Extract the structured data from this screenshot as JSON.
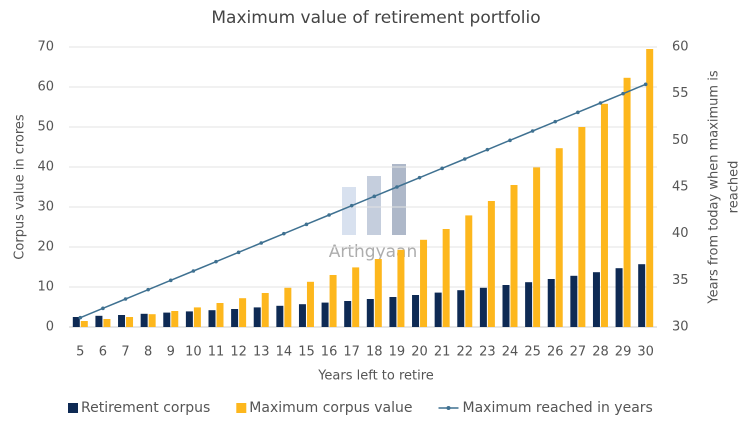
{
  "chart_data": {
    "type": "bar_line",
    "title": "Maximum value of retirement portfolio",
    "xlabel": "Years left to retire",
    "ylabel": "Corpus value in crores",
    "y2label": [
      "Years from today when maximum is",
      "reached"
    ],
    "watermark": "Arthgyaan",
    "categories": [
      "5",
      "6",
      "7",
      "8",
      "9",
      "10",
      "11",
      "12",
      "13",
      "14",
      "15",
      "16",
      "17",
      "18",
      "19",
      "20",
      "21",
      "22",
      "23",
      "24",
      "25",
      "26",
      "27",
      "28",
      "29",
      "30"
    ],
    "series": [
      {
        "name": "Retirement corpus",
        "type": "bar",
        "color": "#0e2a54",
        "values": [
          2.5,
          2.8,
          3.0,
          3.3,
          3.6,
          3.9,
          4.2,
          4.5,
          4.9,
          5.3,
          5.7,
          6.1,
          6.5,
          7.0,
          7.5,
          8.0,
          8.6,
          9.2,
          9.8,
          10.5,
          11.2,
          12.0,
          12.8,
          13.7,
          14.7,
          15.7
        ]
      },
      {
        "name": "Maximum corpus value",
        "type": "bar",
        "color": "#fdb71d",
        "values": [
          1.5,
          2.0,
          2.5,
          3.2,
          4.0,
          4.9,
          6.0,
          7.2,
          8.5,
          9.8,
          11.3,
          13.0,
          14.9,
          17.0,
          19.3,
          21.8,
          24.5,
          27.9,
          31.5,
          35.5,
          39.9,
          44.7,
          50.0,
          55.8,
          62.3,
          69.5
        ]
      },
      {
        "name": "Maximum reached in years",
        "type": "line",
        "axis": "y2",
        "color": "#3f7191",
        "values": [
          31,
          32,
          33,
          34,
          35,
          36,
          37,
          38,
          39,
          40,
          41,
          42,
          43,
          44,
          45,
          46,
          47,
          48,
          49,
          50,
          51,
          52,
          53,
          54,
          55,
          56
        ]
      }
    ],
    "ylim": [
      0,
      70
    ],
    "yticks": [
      0,
      10,
      20,
      30,
      40,
      50,
      60,
      70
    ],
    "y2lim": [
      30,
      60
    ],
    "y2ticks": [
      30,
      35,
      40,
      45,
      50,
      55,
      60
    ],
    "grid": true,
    "legend": "bottom"
  }
}
